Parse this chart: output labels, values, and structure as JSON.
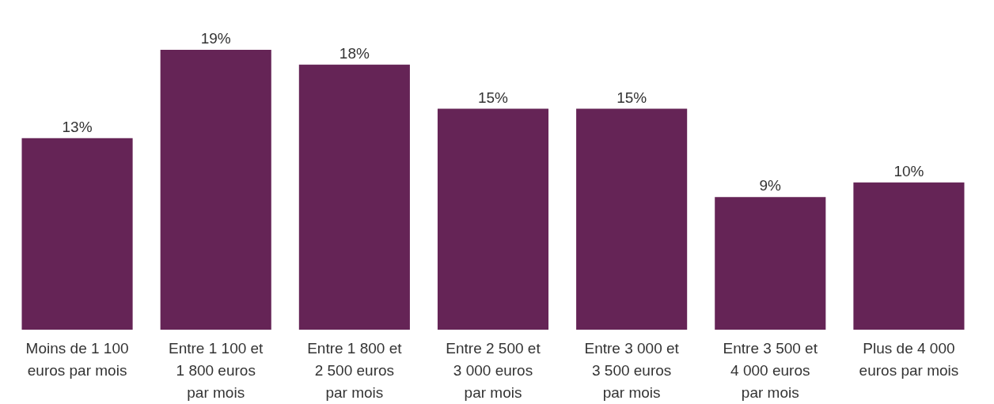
{
  "chart_data": {
    "type": "bar",
    "categories": [
      "Moins de 1 100 euros par mois",
      "Entre 1 100 et 1 800 euros par mois",
      "Entre 1 800 et 2 500 euros par mois",
      "Entre 2 500 et 3 000 euros par mois",
      "Entre 3 000 et 3 500 euros par mois",
      "Entre 3 500 et 4 000 euros par mois",
      "Plus de 4 000 euros par mois"
    ],
    "values": [
      13,
      19,
      18,
      15,
      15,
      9,
      10
    ],
    "value_labels": [
      "13%",
      "19%",
      "18%",
      "15%",
      "15%",
      "9%",
      "10%"
    ],
    "color": "#652456"
  }
}
